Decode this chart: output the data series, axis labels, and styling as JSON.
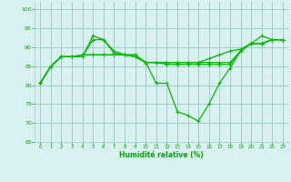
{
  "bg_color": "#d8f0f0",
  "grid_color": "#a0cccc",
  "line_color": "#00bb00",
  "xlabel": "Humidité relative (%)",
  "xlabel_color": "#00aa00",
  "tick_color": "#00aa00",
  "ylim": [
    65,
    102
  ],
  "xlim": [
    -0.5,
    23.5
  ],
  "yticks": [
    65,
    70,
    75,
    80,
    85,
    90,
    95,
    100
  ],
  "xticks": [
    0,
    1,
    2,
    3,
    4,
    5,
    6,
    7,
    8,
    9,
    10,
    11,
    12,
    13,
    14,
    15,
    16,
    17,
    18,
    19,
    20,
    21,
    22,
    23
  ],
  "series": [
    [
      80.5,
      85,
      87.5,
      87.5,
      87.5,
      93,
      92,
      89,
      88,
      87.5,
      86,
      80.5,
      80.5,
      73,
      72,
      70.5,
      75,
      80.5,
      84.5,
      89,
      91,
      93,
      92,
      92
    ],
    [
      80.5,
      85,
      87.5,
      87.5,
      87.5,
      92,
      92,
      88.5,
      88,
      87.5,
      86,
      86,
      85.5,
      85.5,
      85.5,
      85.5,
      85.5,
      85.5,
      85.5,
      89,
      91,
      91,
      92,
      92
    ],
    [
      80.5,
      85,
      87.5,
      87.5,
      88,
      88,
      88,
      88,
      88,
      88,
      86,
      86,
      86,
      86,
      86,
      86,
      86,
      86,
      86,
      89,
      91,
      91,
      92,
      92
    ],
    [
      80.5,
      85,
      87.5,
      87.5,
      88,
      88,
      88,
      88,
      88,
      88,
      86,
      86,
      86,
      86,
      86,
      86,
      87,
      88,
      89,
      89.5,
      91,
      91,
      92,
      92
    ]
  ]
}
